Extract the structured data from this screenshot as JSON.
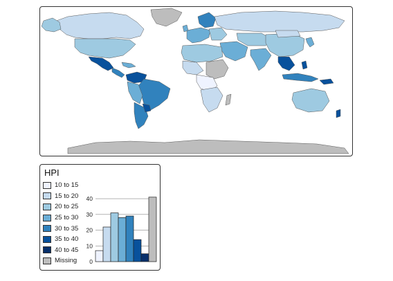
{
  "legend": {
    "title": "HPI",
    "items": [
      {
        "label": "10 to 15",
        "color": "#eff3ff"
      },
      {
        "label": "15 to 20",
        "color": "#c6dbef"
      },
      {
        "label": "20 to 25",
        "color": "#9ecae1"
      },
      {
        "label": "25 to 30",
        "color": "#6baed6"
      },
      {
        "label": "30 to 35",
        "color": "#3182bd"
      },
      {
        "label": "35 to 40",
        "color": "#08519c"
      },
      {
        "label": "40 to 45",
        "color": "#08306b"
      },
      {
        "label": "Missing",
        "color": "#bdbdbd"
      }
    ]
  },
  "chart_data": {
    "type": "bar",
    "categories": [
      "10 to 15",
      "15 to 20",
      "20 to 25",
      "25 to 30",
      "30 to 35",
      "35 to 40",
      "40 to 45",
      "Missing"
    ],
    "values": [
      7,
      22,
      31,
      28,
      29,
      14,
      5,
      41
    ],
    "colors": [
      "#eff3ff",
      "#c6dbef",
      "#9ecae1",
      "#6baed6",
      "#3182bd",
      "#08519c",
      "#08306b",
      "#bdbdbd"
    ],
    "yticks": [
      0,
      10,
      20,
      30,
      40
    ],
    "ylim": [
      0,
      44
    ],
    "grid": true
  },
  "map": {
    "missing_color": "#bdbdbd",
    "border_color": "#555555"
  }
}
